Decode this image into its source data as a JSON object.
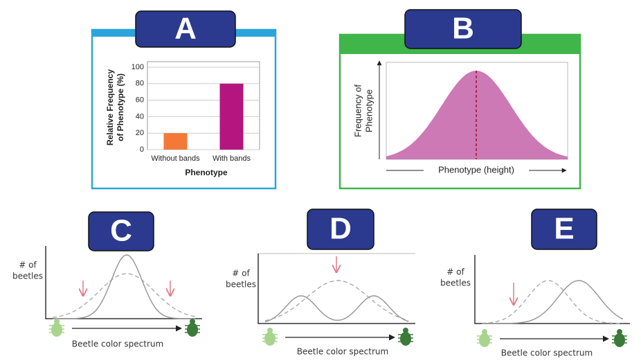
{
  "chart_data": {
    "type": "bar",
    "letter": "A",
    "ylabel": [
      "Relative Frequency",
      "of Phenotype (%)"
    ],
    "xlabel": "Phenotype",
    "categories": [
      "Without bands",
      "With bands"
    ],
    "values": [
      20,
      80
    ],
    "colors": [
      "#f37a36",
      "#b3177f"
    ],
    "ylim": [
      0,
      100
    ],
    "yticks": [
      0,
      20,
      40,
      60,
      80,
      100
    ],
    "grid": true
  },
  "diagrams": {
    "B": {
      "letter": "B",
      "ylabel": [
        "Frequency of",
        "Phenotype"
      ],
      "xlabel": "Phenotype (height)"
    },
    "C": {
      "letter": "C",
      "ylabel": [
        "# of",
        "beetles"
      ],
      "xlabel": "Beetle color spectrum"
    },
    "D": {
      "letter": "D",
      "ylabel": [
        "# of",
        "beetles"
      ],
      "xlabel": "Beetle color spectrum"
    },
    "E": {
      "letter": "E",
      "ylabel": [
        "# of",
        "beetles"
      ],
      "xlabel": "Beetle color spectrum"
    }
  }
}
